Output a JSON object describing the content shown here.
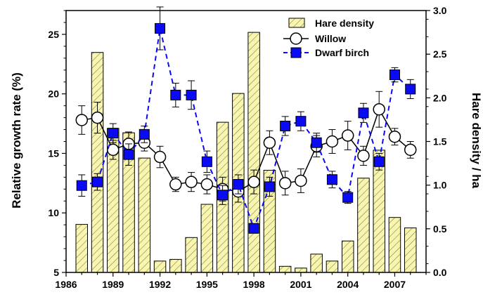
{
  "chart_data": {
    "type": "bar+line",
    "xlabel": "",
    "ylabel": "Relative growth rate (%)",
    "y2label": "Hare density / ha",
    "xlim": [
      1986,
      2009
    ],
    "ylim": [
      5,
      27
    ],
    "y2lim": [
      0,
      3.0
    ],
    "x_ticks": [
      "1986",
      "1989",
      "1992",
      "1995",
      "1998",
      "2001",
      "2004",
      "2007"
    ],
    "y_ticks": [
      "5",
      "10",
      "15",
      "20",
      "25"
    ],
    "y2_ticks": [
      "0.0",
      "0.5",
      "1.0",
      "1.5",
      "2.0",
      "2.5",
      "3.0"
    ],
    "legend_position": "top-right",
    "grid": false,
    "series": [
      {
        "name": "Hare density",
        "kind": "bar",
        "axis": "right",
        "color": "#f8f5b0",
        "x": [
          1987,
          1988,
          1989,
          1990,
          1991,
          1992,
          1993,
          1994,
          1995,
          1996,
          1997,
          1998,
          1999,
          2000,
          2001,
          2002,
          2003,
          2004,
          2005,
          2006,
          2007,
          2008
        ],
        "values": [
          0.55,
          2.52,
          1.65,
          1.6,
          1.31,
          0.13,
          0.15,
          0.4,
          0.78,
          1.72,
          2.05,
          2.75,
          1.17,
          0.07,
          0.05,
          0.21,
          0.13,
          0.36,
          1.08,
          1.4,
          0.63,
          0.51
        ]
      },
      {
        "name": "Willow",
        "kind": "line",
        "axis": "left",
        "color": "#000000",
        "x": [
          1987,
          1988,
          1989,
          1990,
          1991,
          1992,
          1993,
          1994,
          1995,
          1996,
          1997,
          1998,
          1999,
          2000,
          2001,
          2002,
          2003,
          2004,
          2005,
          2006,
          2007,
          2008
        ],
        "values": [
          17.8,
          18.0,
          15.3,
          15.8,
          15.9,
          14.7,
          12.4,
          12.6,
          12.4,
          12.0,
          11.8,
          12.6,
          15.9,
          12.5,
          12.7,
          15.6,
          16.0,
          16.5,
          14.8,
          18.7,
          16.4,
          15.3
        ],
        "errors": [
          1.2,
          1.3,
          0.8,
          1.0,
          0.7,
          0.9,
          0.6,
          0.8,
          0.8,
          1.0,
          0.9,
          1.0,
          1.0,
          1.0,
          1.0,
          0.9,
          1.0,
          1.2,
          0.8,
          1.5,
          0.7,
          0.7
        ]
      },
      {
        "name": "Dwarf birch",
        "kind": "line",
        "axis": "left",
        "color": "#0a0af5",
        "x": [
          1987,
          1988,
          1989,
          1990,
          1991,
          1992,
          1993,
          1994,
          1995,
          1996,
          1997,
          1998,
          1999,
          2000,
          2001,
          2002,
          2003,
          2004,
          2005,
          2006,
          2007,
          2008
        ],
        "values": [
          12.3,
          12.6,
          16.7,
          14.9,
          16.6,
          25.5,
          19.9,
          19.9,
          14.3,
          11.5,
          12.4,
          8.7,
          12.2,
          17.3,
          17.7,
          15.9,
          12.8,
          11.3,
          18.4,
          14.3,
          21.6,
          20.4
        ],
        "errors": [
          0.9,
          0.7,
          0.8,
          0.9,
          0.7,
          1.8,
          1.0,
          1.2,
          0.9,
          0.8,
          0.8,
          0.4,
          0.8,
          0.8,
          0.8,
          0.8,
          0.7,
          0.5,
          0.8,
          0.7,
          0.6,
          0.8
        ]
      }
    ]
  }
}
